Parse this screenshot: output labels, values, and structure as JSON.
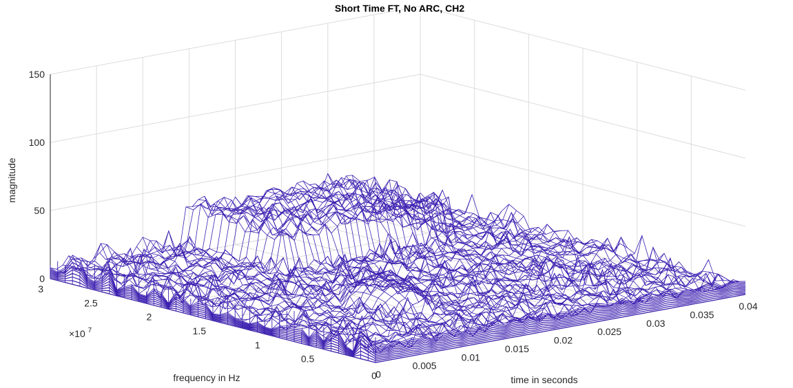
{
  "chart_data": {
    "type": "surface-mesh",
    "title": "Short Time FT, No ARC, CH2",
    "xlabel": "time in seconds",
    "ylabel": "frequency in Hz",
    "zlabel": "magnitude",
    "y_exponent": "×10",
    "y_exponent_power": "7",
    "xlim": [
      0,
      0.04
    ],
    "ylim": [
      0,
      3
    ],
    "zlim": [
      0,
      150
    ],
    "x_ticks": [
      "0",
      "0.005",
      "0.01",
      "0.015",
      "0.02",
      "0.025",
      "0.03",
      "0.035",
      "0.04"
    ],
    "y_ticks": [
      "0.5",
      "1",
      "1.5",
      "2",
      "2.5",
      "3"
    ],
    "z_ticks": [
      "0",
      "50",
      "100",
      "150"
    ],
    "grid": true,
    "mesh_color": "#3b1fb0",
    "grid_color": "#dcdcdc",
    "features": {
      "time_ridge": {
        "time_start": 0.014,
        "time_end": 0.033,
        "frequency_start": 2.1,
        "frequency_end": 3.0,
        "magnitude": 40
      },
      "low_freq_ridge": {
        "time_start": 0.0,
        "time_end": 0.04,
        "frequency": 0.0,
        "magnitude": 12
      },
      "hump": {
        "time": 0.013,
        "frequency": 1.0,
        "magnitude": 32
      },
      "baseline_magnitude": 4
    }
  }
}
